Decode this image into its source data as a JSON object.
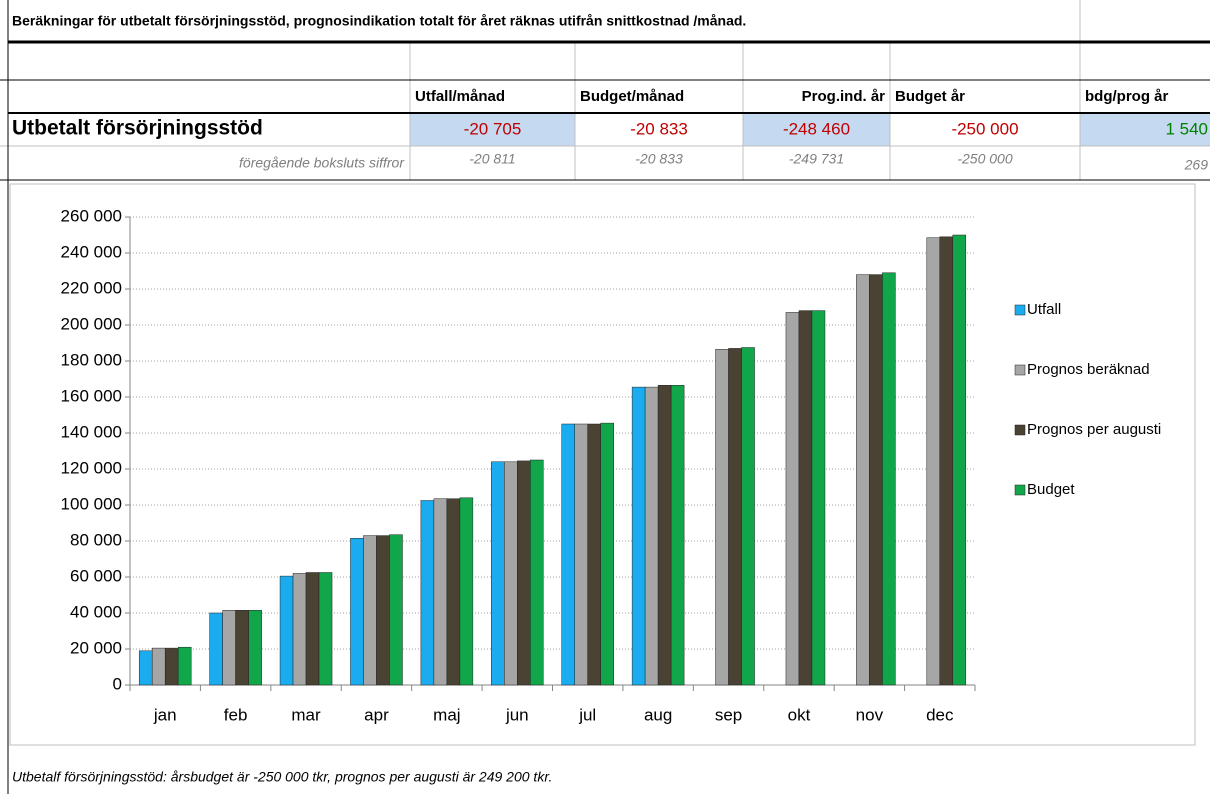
{
  "table": {
    "title": "Beräkningar för utbetalt försörjningsstöd, prognosindikation totalt för året räknas utifrån snittkostnad /månad.",
    "headers": [
      "Utfall/månad",
      "Budget/månad",
      "Prog.ind. år",
      "Budget år",
      "bdg/prog år"
    ],
    "rows": [
      [
        "Utbetalt försörjningsstöd",
        "-20 705",
        "-20 833",
        "-248 460",
        "-250 000",
        "1 540"
      ],
      [
        "föregående boksluts siffror",
        "-20 811",
        "-20 833",
        "-249 731",
        "-250 000",
        "269"
      ]
    ]
  },
  "chart_data": {
    "type": "bar",
    "categories": [
      "jan",
      "feb",
      "mar",
      "apr",
      "maj",
      "jun",
      "jul",
      "aug",
      "sep",
      "okt",
      "nov",
      "dec"
    ],
    "series": [
      {
        "name": "Utfall",
        "color": "#1aacee",
        "values": [
          19000,
          40000,
          60500,
          81500,
          102500,
          124000,
          145000,
          165500,
          null,
          null,
          null,
          null
        ]
      },
      {
        "name": "Prognos beräknad",
        "color": "#a6a6a6",
        "values": [
          20500,
          41500,
          62000,
          83000,
          103500,
          124000,
          145000,
          165500,
          186500,
          207000,
          228000,
          248500
        ]
      },
      {
        "name": "Prognos per augusti",
        "color": "#4a4233",
        "values": [
          20500,
          41500,
          62500,
          83000,
          103500,
          124500,
          145000,
          166500,
          187000,
          208000,
          228000,
          249000
        ]
      },
      {
        "name": "Budget",
        "color": "#12a64a",
        "values": [
          21000,
          41500,
          62500,
          83500,
          104000,
          125000,
          145500,
          166500,
          187500,
          208000,
          229000,
          250000
        ]
      }
    ],
    "ylim": [
      0,
      260000
    ],
    "yticks": [
      0,
      {
        "value": 20000,
        "label": "20 000"
      },
      {
        "value": 40000,
        "label": "40 000"
      },
      {
        "value": 60000,
        "label": "60 000"
      },
      {
        "value": 80000,
        "label": "80 000"
      },
      {
        "value": 100000,
        "label": "100 000"
      },
      {
        "value": 120000,
        "label": "120 000"
      },
      {
        "value": 140000,
        "label": "140 000"
      },
      {
        "value": 160000,
        "label": "160 000"
      },
      {
        "value": 180000,
        "label": "180 000"
      },
      {
        "value": 200000,
        "label": "200 000"
      },
      {
        "value": 220000,
        "label": "220 000"
      },
      {
        "value": 240000,
        "label": "240 000"
      },
      {
        "value": 260000,
        "label": "260 000"
      }
    ],
    "grid": true,
    "legend": "right"
  },
  "footnote": "Utbetalf försörjningsstöd: årsbudget är -250 000 tkr, prognos per augusti är 249 200 tkr."
}
